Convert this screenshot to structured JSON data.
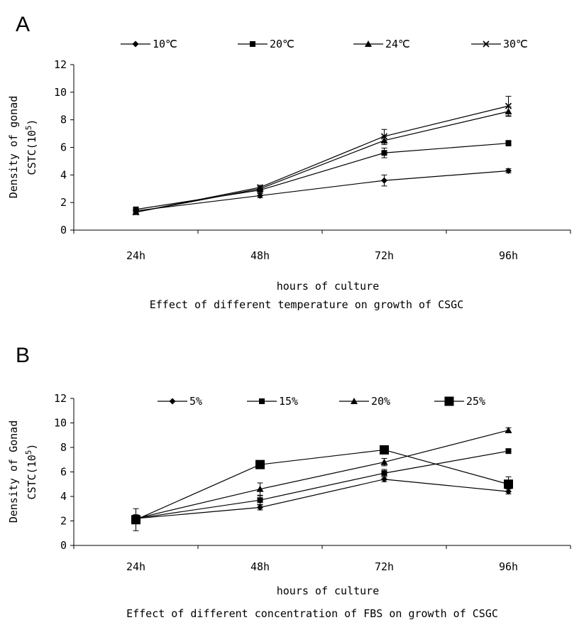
{
  "panels": [
    {
      "letter": "A",
      "caption": "Effect of different temperature on growth of CSGC"
    },
    {
      "letter": "B",
      "caption": "Effect of different concentration of FBS on growth of CSGC"
    }
  ],
  "chart_data": [
    {
      "type": "line",
      "title": "",
      "xlabel": "hours of culture",
      "ylabel_line1": "Density of gonad",
      "ylabel_line2": "CSTC(10",
      "ylabel_exp": "5",
      "ylabel_close": ")",
      "categories": [
        "24h",
        "48h",
        "72h",
        "96h"
      ],
      "ylim": [
        0,
        12
      ],
      "yticks": [
        "0",
        "2",
        "4",
        "6",
        "8",
        "10",
        "12"
      ],
      "legend_position": "top",
      "series": [
        {
          "name": "10℃",
          "marker": "diamond",
          "values": [
            1.4,
            2.5,
            3.6,
            4.3
          ],
          "errors": [
            0.15,
            0.15,
            0.4,
            0.15
          ]
        },
        {
          "name": "20℃",
          "marker": "square",
          "values": [
            1.5,
            2.9,
            5.6,
            6.3
          ],
          "errors": [
            0.1,
            0.15,
            0.35,
            0.2
          ]
        },
        {
          "name": "24℃",
          "marker": "triangle",
          "values": [
            1.3,
            3.0,
            6.5,
            8.6
          ],
          "errors": [
            0.1,
            0.15,
            0.3,
            0.35
          ]
        },
        {
          "name": "30℃",
          "marker": "x",
          "values": [
            1.3,
            3.1,
            6.8,
            9.0
          ],
          "errors": [
            0.1,
            0.15,
            0.5,
            0.7
          ]
        }
      ]
    },
    {
      "type": "line",
      "title": "",
      "xlabel": "hours of culture",
      "ylabel_line1": "Density of Gonad",
      "ylabel_line2": "CSTC(10",
      "ylabel_exp": "5",
      "ylabel_close": ")",
      "categories": [
        "24h",
        "48h",
        "72h",
        "96h"
      ],
      "ylim": [
        0,
        12
      ],
      "yticks": [
        "0",
        "2",
        "4",
        "6",
        "8",
        "10",
        "12"
      ],
      "legend_position": "top",
      "series": [
        {
          "name": "5%",
          "marker": "diamond",
          "values": [
            2.2,
            3.1,
            5.4,
            4.4
          ],
          "errors": [
            0.3,
            0.2,
            0.2,
            0.2
          ]
        },
        {
          "name": "15%",
          "marker": "square",
          "values": [
            2.2,
            3.7,
            5.9,
            7.7
          ],
          "errors": [
            0.3,
            0.35,
            0.3,
            0.15
          ]
        },
        {
          "name": "20%",
          "marker": "triangle",
          "values": [
            2.2,
            4.6,
            6.8,
            9.4
          ],
          "errors": [
            0.3,
            0.5,
            0.3,
            0.2
          ]
        },
        {
          "name": "25%",
          "marker": "bigsquare",
          "values": [
            2.1,
            6.6,
            7.8,
            5.0
          ],
          "errors": [
            0.9,
            0.3,
            0.2,
            0.6
          ]
        }
      ]
    }
  ]
}
